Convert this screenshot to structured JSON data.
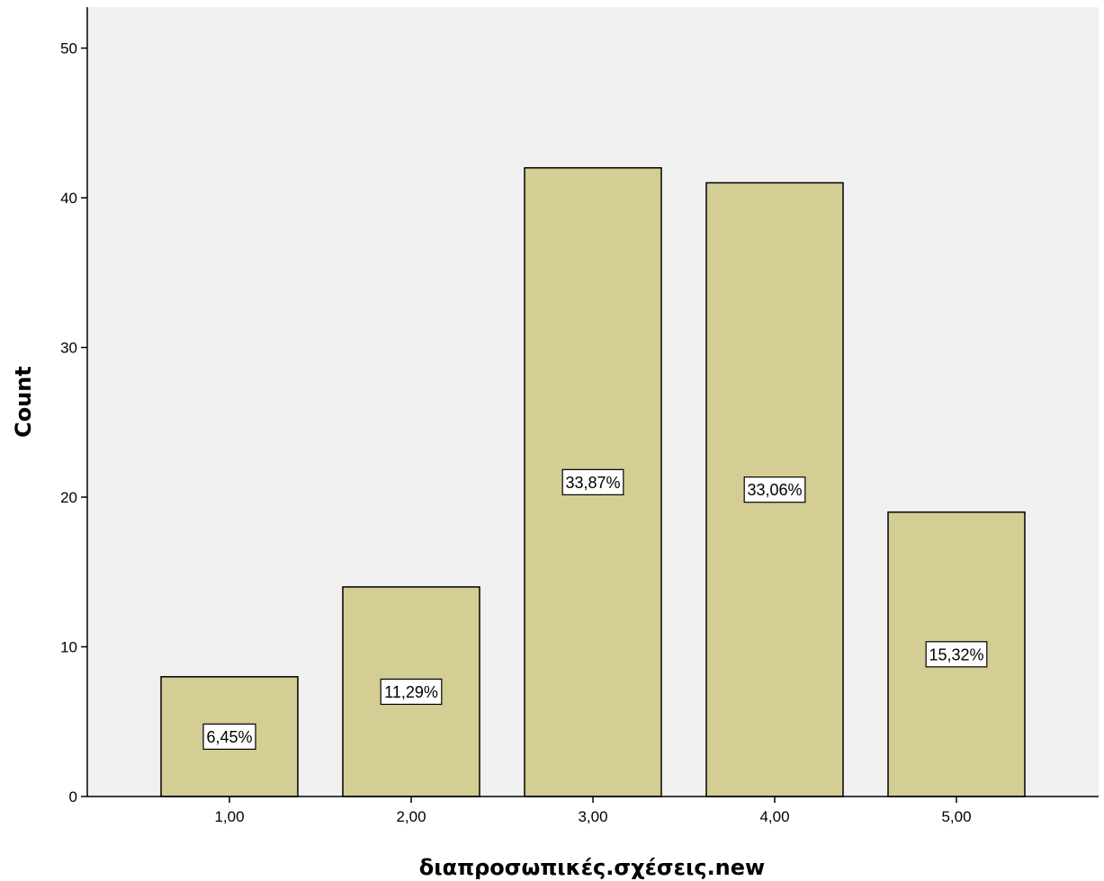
{
  "chart_data": {
    "type": "bar",
    "title": "",
    "xlabel": "διαπροσωπικές.σχέσεις.new",
    "ylabel": "Count",
    "categories": [
      "1,00",
      "2,00",
      "3,00",
      "4,00",
      "5,00"
    ],
    "values": [
      8,
      14,
      42,
      41,
      19
    ],
    "bar_labels": [
      "6,45%",
      "11,29%",
      "33,87%",
      "33,06%",
      "15,32%"
    ],
    "ylim": [
      0,
      52.5
    ],
    "yticks": [
      0,
      10,
      20,
      30,
      40,
      50
    ],
    "ytick_labels": [
      "0",
      "10",
      "20",
      "30",
      "40",
      "50"
    ],
    "grid": false,
    "legend": "none",
    "colors": {
      "bar_fill": "#d4cd94",
      "bar_stroke": "#000000",
      "plot_background": "#f0f0f0",
      "label_box": "#ffffff"
    }
  }
}
